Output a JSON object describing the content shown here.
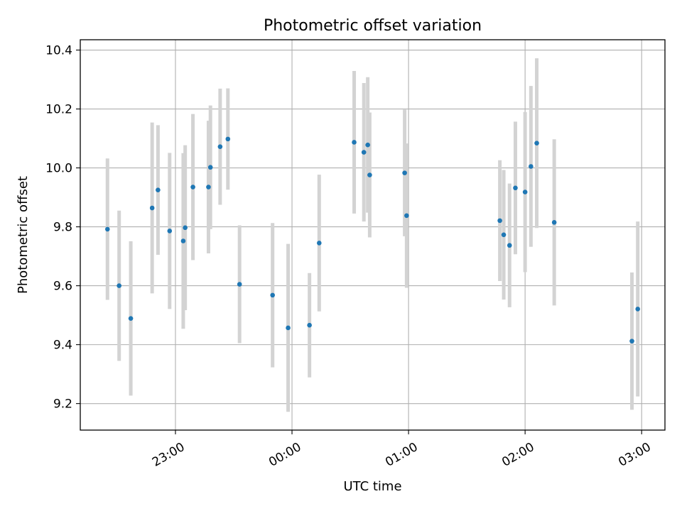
{
  "chart_data": {
    "type": "scatter",
    "title": "Photometric offset variation",
    "xlabel": "UTC time",
    "ylabel": "Photometric offset",
    "xlim": [
      "22:11",
      "03:12"
    ],
    "ylim": [
      9.11,
      10.435
    ],
    "x_ticks": [
      "23:00",
      "00:00",
      "01:00",
      "02:00",
      "03:00"
    ],
    "y_ticks": [
      9.2,
      9.4,
      9.6,
      9.8,
      10.0,
      10.2,
      10.4
    ],
    "grid": true,
    "legend": "none",
    "points": [
      {
        "x": "22:25",
        "y": 9.792,
        "yerr": 0.24
      },
      {
        "x": "22:31",
        "y": 9.6,
        "yerr": 0.255
      },
      {
        "x": "22:37",
        "y": 9.489,
        "yerr": 0.262
      },
      {
        "x": "22:48",
        "y": 9.864,
        "yerr": 0.29
      },
      {
        "x": "22:51",
        "y": 9.925,
        "yerr": 0.22
      },
      {
        "x": "22:57",
        "y": 9.786,
        "yerr": 0.265
      },
      {
        "x": "23:04",
        "y": 9.752,
        "yerr": 0.298
      },
      {
        "x": "23:05",
        "y": 9.797,
        "yerr": 0.28
      },
      {
        "x": "23:09",
        "y": 9.935,
        "yerr": 0.248
      },
      {
        "x": "23:17",
        "y": 9.935,
        "yerr": 0.225
      },
      {
        "x": "23:18",
        "y": 10.002,
        "yerr": 0.21
      },
      {
        "x": "23:23",
        "y": 10.072,
        "yerr": 0.197
      },
      {
        "x": "23:27",
        "y": 10.098,
        "yerr": 0.172
      },
      {
        "x": "23:33",
        "y": 9.605,
        "yerr": 0.2
      },
      {
        "x": "23:50",
        "y": 9.568,
        "yerr": 0.245
      },
      {
        "x": "23:58",
        "y": 9.457,
        "yerr": 0.285
      },
      {
        "x": "00:09",
        "y": 9.466,
        "yerr": 0.177
      },
      {
        "x": "00:14",
        "y": 9.745,
        "yerr": 0.232
      },
      {
        "x": "00:32",
        "y": 10.087,
        "yerr": 0.242
      },
      {
        "x": "00:37",
        "y": 10.053,
        "yerr": 0.235
      },
      {
        "x": "00:39",
        "y": 10.078,
        "yerr": 0.23
      },
      {
        "x": "00:40",
        "y": 9.976,
        "yerr": 0.212
      },
      {
        "x": "00:58",
        "y": 9.983,
        "yerr": 0.215
      },
      {
        "x": "00:59",
        "y": 9.838,
        "yerr": 0.245
      },
      {
        "x": "01:47",
        "y": 9.821,
        "yerr": 0.205
      },
      {
        "x": "01:49",
        "y": 9.773,
        "yerr": 0.22
      },
      {
        "x": "01:52",
        "y": 9.737,
        "yerr": 0.21
      },
      {
        "x": "01:55",
        "y": 9.932,
        "yerr": 0.225
      },
      {
        "x": "02:00",
        "y": 9.918,
        "yerr": 0.272
      },
      {
        "x": "02:03",
        "y": 10.005,
        "yerr": 0.273
      },
      {
        "x": "02:06",
        "y": 10.084,
        "yerr": 0.288
      },
      {
        "x": "02:15",
        "y": 9.815,
        "yerr": 0.282
      },
      {
        "x": "02:55",
        "y": 9.412,
        "yerr": 0.233
      },
      {
        "x": "02:58",
        "y": 9.521,
        "yerr": 0.297
      }
    ],
    "colors": {
      "marker": "#1f77b4",
      "errorbar": "#d3d3d3",
      "grid": "#b0b0b0"
    }
  }
}
